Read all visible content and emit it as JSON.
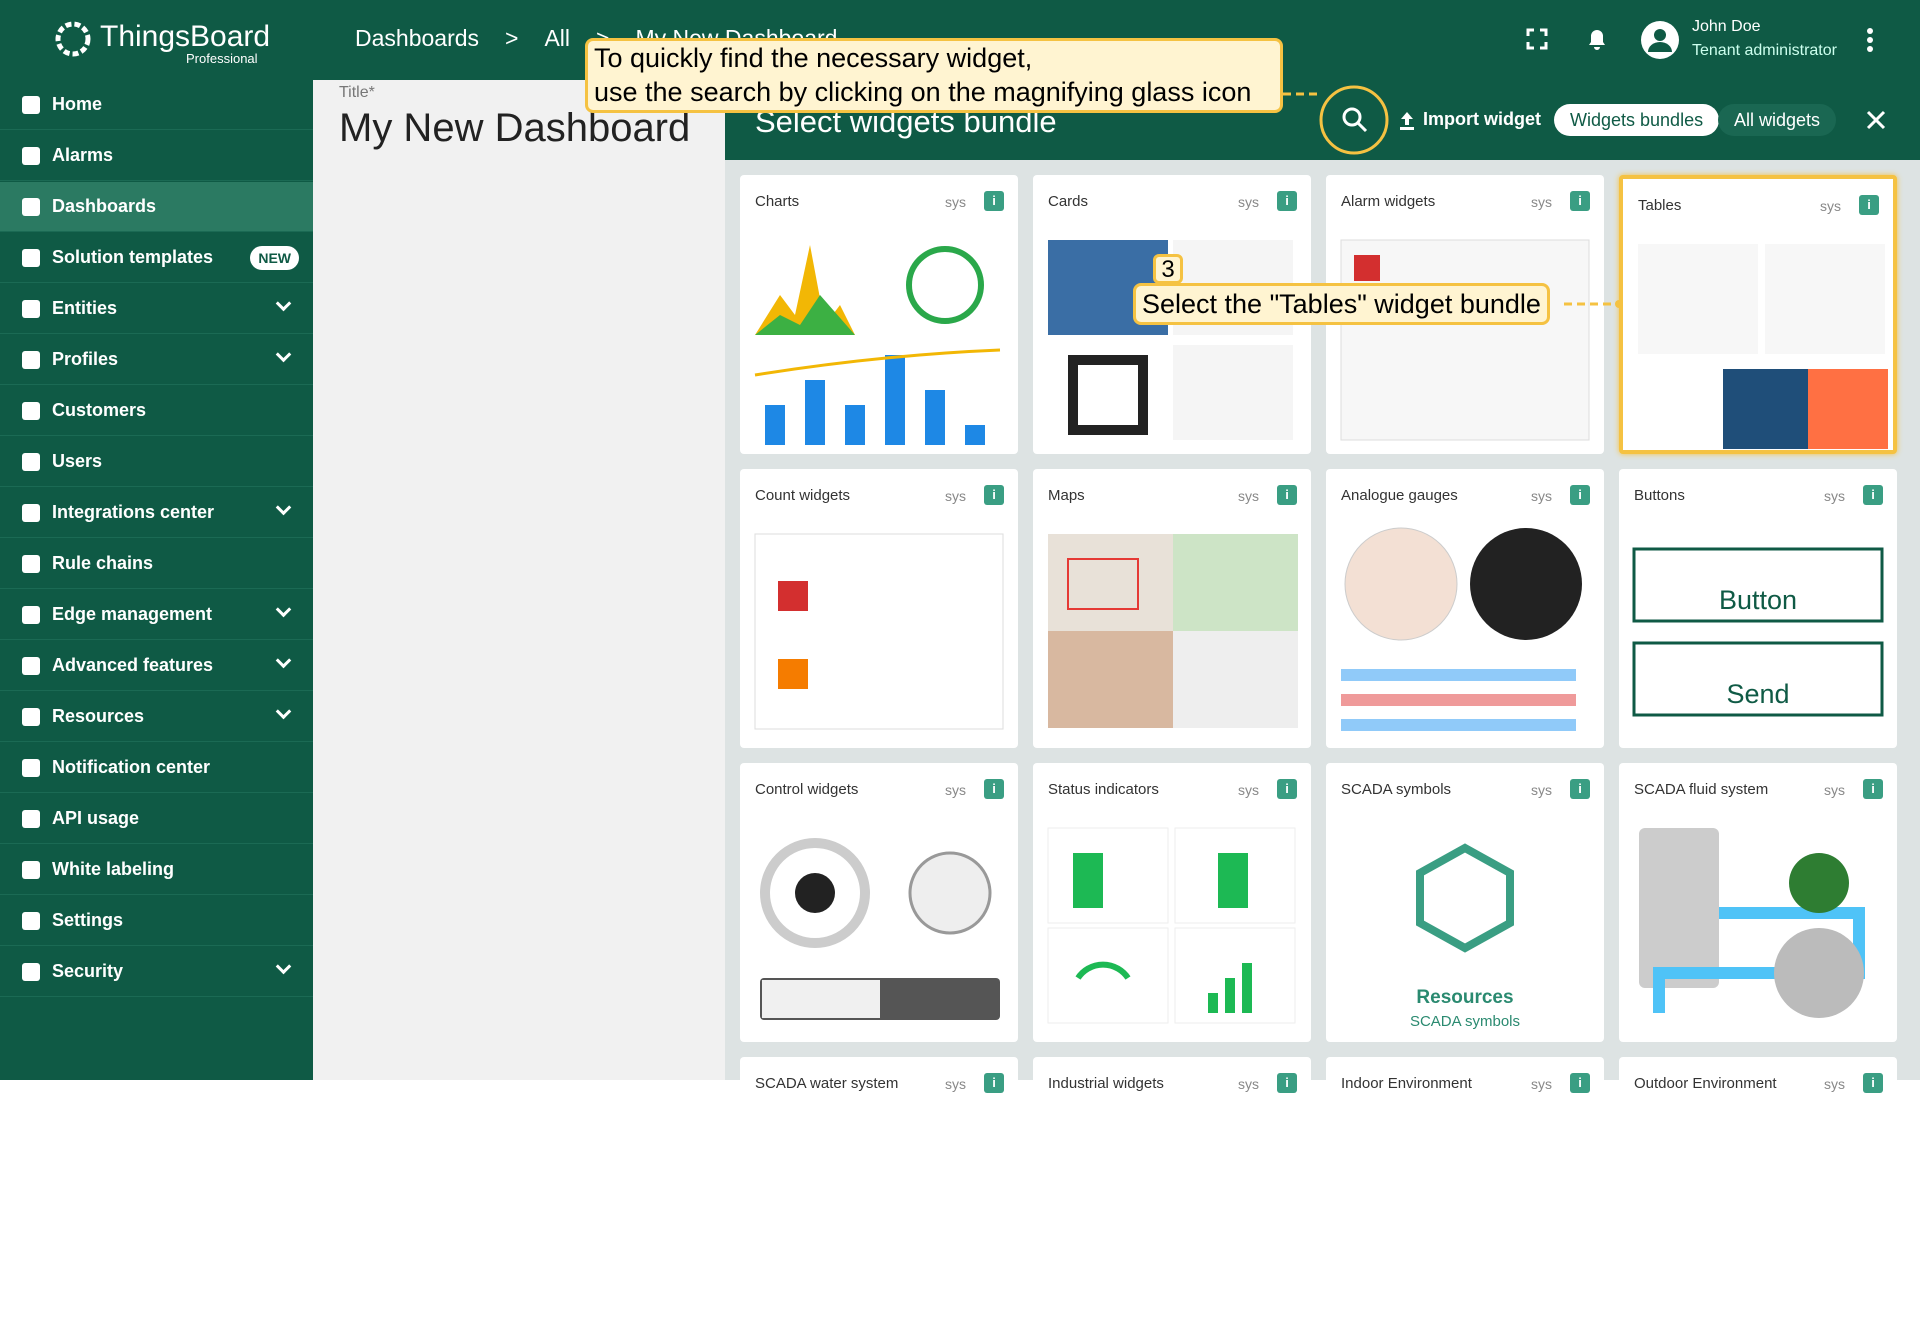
{
  "brand": {
    "name": "ThingsBoard",
    "edition": "Professional"
  },
  "nav": [
    {
      "label": "Home"
    },
    {
      "label": "Alarms"
    },
    {
      "label": "Dashboards",
      "active": true
    },
    {
      "label": "Solution templates",
      "badge": "NEW"
    },
    {
      "label": "Entities",
      "expandable": true
    },
    {
      "label": "Profiles",
      "expandable": true
    },
    {
      "label": "Customers"
    },
    {
      "label": "Users"
    },
    {
      "label": "Integrations center",
      "expandable": true
    },
    {
      "label": "Rule chains"
    },
    {
      "label": "Edge management",
      "expandable": true
    },
    {
      "label": "Advanced features",
      "expandable": true
    },
    {
      "label": "Resources",
      "expandable": true
    },
    {
      "label": "Notification center"
    },
    {
      "label": "API usage"
    },
    {
      "label": "White labeling"
    },
    {
      "label": "Settings"
    },
    {
      "label": "Security",
      "expandable": true
    }
  ],
  "breadcrumbs": {
    "items": [
      "Dashboards",
      "All",
      "My New Dashboard"
    ],
    "separator": ">"
  },
  "user": {
    "name": "John Doe",
    "role": "Tenant administrator"
  },
  "dashboard": {
    "title_label": "Title*",
    "title": "My New Dashboard"
  },
  "panel": {
    "title": "Select widgets bundle",
    "import": "Import widget",
    "tabs": [
      "Widgets bundles",
      "All widgets"
    ]
  },
  "bundles": [
    {
      "title": "Charts",
      "tag": "sys"
    },
    {
      "title": "Cards",
      "tag": "sys"
    },
    {
      "title": "Alarm widgets",
      "tag": "sys"
    },
    {
      "title": "Tables",
      "tag": "sys",
      "highlight": true
    },
    {
      "title": "Count widgets",
      "tag": "sys"
    },
    {
      "title": "Maps",
      "tag": "sys"
    },
    {
      "title": "Analogue gauges",
      "tag": "sys"
    },
    {
      "title": "Buttons",
      "tag": "sys",
      "preview_texts": [
        "Button",
        "Send"
      ]
    },
    {
      "title": "Control widgets",
      "tag": "sys"
    },
    {
      "title": "Status indicators",
      "tag": "sys"
    },
    {
      "title": "SCADA symbols",
      "tag": "sys",
      "preview_texts": [
        "Resources",
        "SCADA symbols"
      ]
    },
    {
      "title": "SCADA fluid system",
      "tag": "sys"
    },
    {
      "title": "SCADA water system",
      "tag": "sys"
    },
    {
      "title": "Industrial widgets",
      "tag": "sys"
    },
    {
      "title": "Indoor Environment",
      "tag": "sys"
    },
    {
      "title": "Outdoor Environment",
      "tag": "sys"
    }
  ],
  "callouts": [
    {
      "lines": [
        "To quickly find the necessary widget,",
        "use the search by clicking on the magnifying glass icon"
      ]
    },
    {
      "step": "3",
      "lines": [
        "Select the \"Tables\" widget bundle"
      ]
    }
  ]
}
